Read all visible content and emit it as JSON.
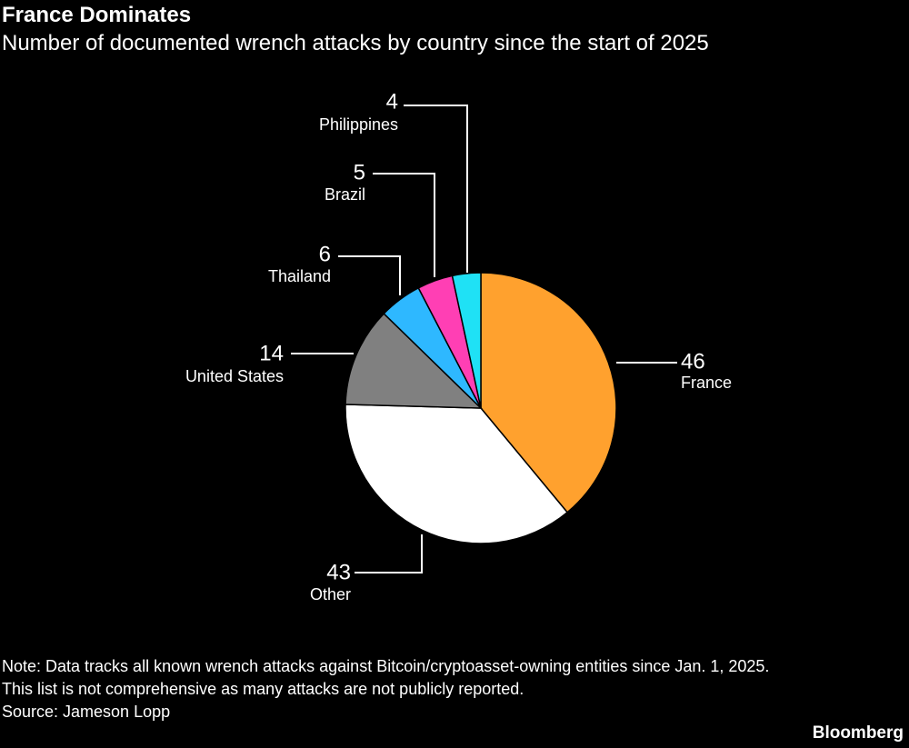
{
  "header": {
    "title": "France Dominates",
    "subtitle": "Number of documented wrench attacks by country since the start of 2025"
  },
  "chart_data": {
    "type": "pie",
    "title": "France Dominates",
    "subtitle": "Number of documented wrench attacks by country since the start of 2025",
    "slices": [
      {
        "label": "France",
        "value": 46,
        "color": "#ffa12e"
      },
      {
        "label": "Other",
        "value": 43,
        "color": "#ffffff"
      },
      {
        "label": "United States",
        "value": 14,
        "color": "#808080"
      },
      {
        "label": "Thailand",
        "value": 6,
        "color": "#2eb8ff"
      },
      {
        "label": "Brazil",
        "value": 5,
        "color": "#ff3fb4"
      },
      {
        "label": "Philippines",
        "value": 4,
        "color": "#1fe1f5"
      }
    ],
    "start": "12 o'clock",
    "direction": "clockwise",
    "legend": "none (callout labels with leader lines)"
  },
  "footer": {
    "note_line1": "Note: Data tracks all known wrench attacks against Bitcoin/cryptoasset-owning entities since Jan. 1, 2025.",
    "note_line2": "This list is not comprehensive as many attacks are not publicly reported.",
    "source": "Source: Jameson Lopp",
    "brand": "Bloomberg"
  }
}
